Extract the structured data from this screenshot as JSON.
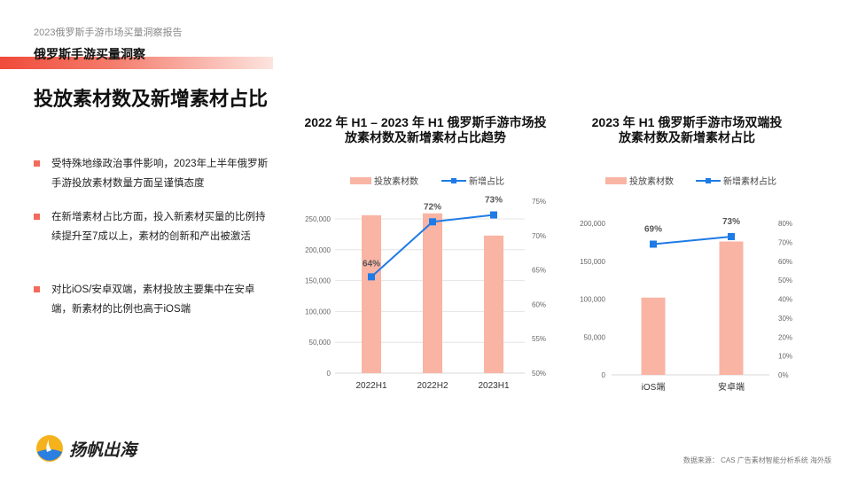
{
  "header": {
    "report_title": "2023俄罗斯手游市场买量洞察报告",
    "section": "俄罗斯手游买量洞察",
    "page_title": "投放素材数及新增素材占比"
  },
  "bullets": [
    "受特殊地缘政治事件影响，2023年上半年俄罗斯手游投放素材数量方面呈谨慎态度",
    "在新增素材占比方面，投入新素材买量的比例持续提升至7成以上，素材的创新和产出被激活",
    "对比iOS/安卓双端，素材投放主要集中在安卓端，新素材的比例也高于iOS端"
  ],
  "colors": {
    "bar": "#f9b4a4",
    "line": "#1e7be6",
    "accent": "#f04a3a"
  },
  "chart_data": [
    {
      "type": "bar+line",
      "title": "2022 年 H1 – 2023 年 H1 俄罗斯手游市场投放素材数及新增素材占比趋势",
      "categories": [
        "2022H1",
        "2022H2",
        "2023H1"
      ],
      "series": [
        {
          "name": "投放素材数",
          "type": "bar",
          "axis": "left",
          "values": [
            256000,
            259000,
            223000
          ]
        },
        {
          "name": "新增占比",
          "type": "line",
          "axis": "right",
          "values": [
            64,
            72,
            73
          ],
          "labels": [
            "64%",
            "72%",
            "73%"
          ]
        }
      ],
      "left_ticks": [
        "0",
        "50,000",
        "100,000",
        "150,000",
        "200,000",
        "250,000"
      ],
      "left_range": [
        0,
        250000
      ],
      "right_ticks": [
        "50%",
        "55%",
        "60%",
        "65%",
        "70%",
        "75%"
      ],
      "right_range": [
        50,
        75
      ],
      "legend": "top",
      "grid": true
    },
    {
      "type": "bar+line",
      "title": "2023 年 H1 俄罗斯手游市场双端投放素材数及新增素材占比",
      "categories": [
        "iOS端",
        "安卓端"
      ],
      "series": [
        {
          "name": "投放素材数",
          "type": "bar",
          "axis": "left",
          "values": [
            102000,
            176000
          ]
        },
        {
          "name": "新增素材占比",
          "type": "line",
          "axis": "right",
          "values": [
            69,
            73
          ],
          "labels": [
            "69%",
            "73%"
          ]
        }
      ],
      "left_ticks": [
        "0",
        "50,000",
        "100,000",
        "150,000",
        "200,000"
      ],
      "left_range": [
        0,
        200000
      ],
      "right_ticks": [
        "0%",
        "10%",
        "20%",
        "30%",
        "40%",
        "50%",
        "60%",
        "70%",
        "80%"
      ],
      "right_range": [
        0,
        80
      ],
      "legend": "top",
      "grid": false
    }
  ],
  "footer": {
    "source": "数据来源： CAS 广告素材智能分析系统 海外版",
    "logo_text": "扬帆出海"
  }
}
